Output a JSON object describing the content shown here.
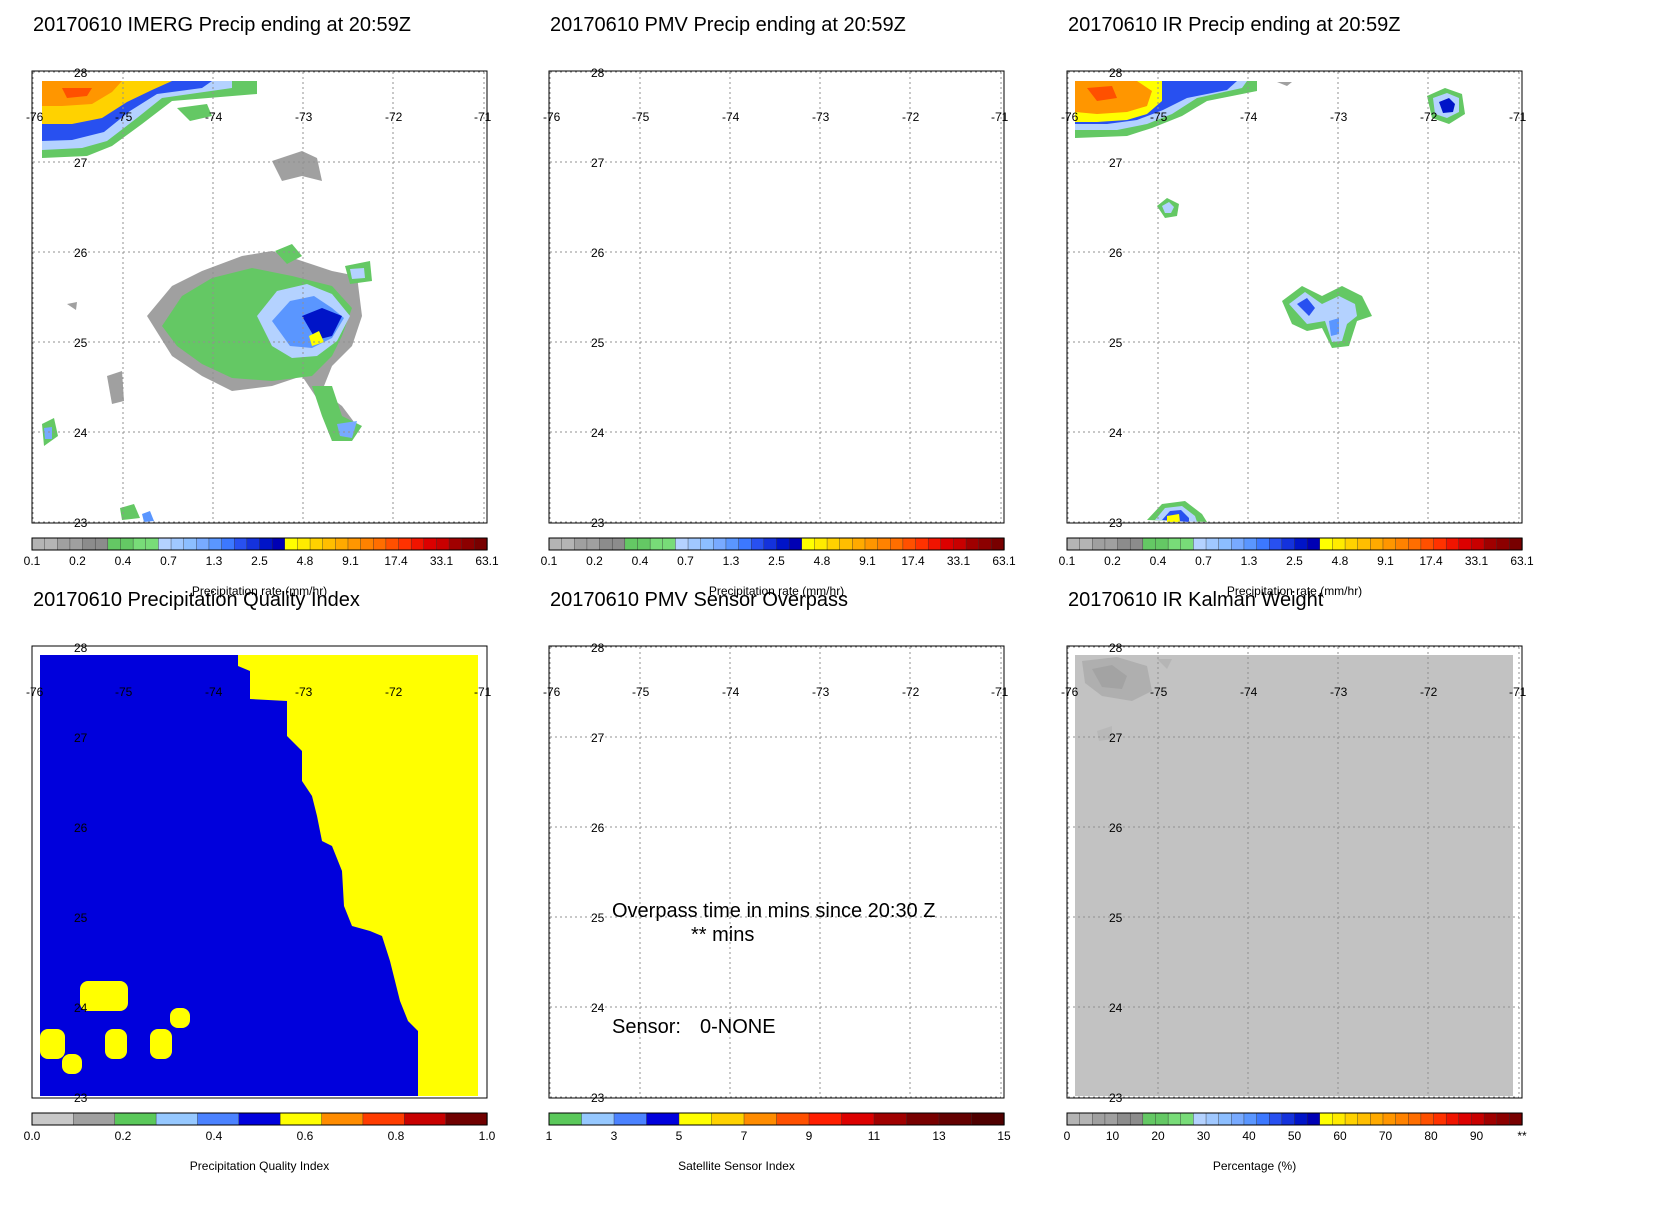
{
  "geo": {
    "lon_ticks": [
      "-76",
      "-75",
      "-74",
      "-73",
      "-72",
      "-71"
    ],
    "lat_ticks": [
      "28",
      "27",
      "26",
      "25",
      "24",
      "23"
    ],
    "lon_range": [
      -76,
      -71
    ],
    "lat_range": [
      23,
      28
    ]
  },
  "panels": [
    {
      "title": "20170610 IMERG Precip ending at 20:59Z",
      "colorbar": {
        "labels": [
          "0.1",
          "0.2",
          "0.4",
          "0.7",
          "1.3",
          "2.5",
          "4.8",
          "9.1",
          "17.4",
          "33.1",
          "63.1"
        ],
        "caption": "Precipitation rate (mm/hr)",
        "colors": [
          "#b4b4b4",
          "#b4b4b4",
          "#a0a0a0",
          "#a0a0a0",
          "#8c8c8c",
          "#8c8c8c",
          "#64c864",
          "#64c864",
          "#78dc78",
          "#78dc78",
          "#b4d2ff",
          "#a0c8ff",
          "#8cbeff",
          "#78aaff",
          "#5a96ff",
          "#3c78ff",
          "#2850f0",
          "#1432dc",
          "#0014c8",
          "#0000b4",
          "#ffff00",
          "#ffeb00",
          "#ffd200",
          "#ffbe00",
          "#ffaa00",
          "#ff9600",
          "#ff8200",
          "#ff6e00",
          "#ff5000",
          "#ff3200",
          "#f01400",
          "#dc0000",
          "#c80000",
          "#a00000",
          "#8c0000",
          "#780000"
        ]
      }
    },
    {
      "title": "20170610 PMV Precip ending at 20:59Z",
      "colorbar": {
        "labels": [
          "0.1",
          "0.2",
          "0.4",
          "0.7",
          "1.3",
          "2.5",
          "4.8",
          "9.1",
          "17.4",
          "33.1",
          "63.1"
        ],
        "caption": "Precipitation rate (mm/hr)",
        "colors": [
          "#b4b4b4",
          "#b4b4b4",
          "#a0a0a0",
          "#a0a0a0",
          "#8c8c8c",
          "#8c8c8c",
          "#64c864",
          "#64c864",
          "#78dc78",
          "#78dc78",
          "#b4d2ff",
          "#a0c8ff",
          "#8cbeff",
          "#78aaff",
          "#5a96ff",
          "#3c78ff",
          "#2850f0",
          "#1432dc",
          "#0014c8",
          "#0000b4",
          "#ffff00",
          "#ffeb00",
          "#ffd200",
          "#ffbe00",
          "#ffaa00",
          "#ff9600",
          "#ff8200",
          "#ff6e00",
          "#ff5000",
          "#ff3200",
          "#f01400",
          "#dc0000",
          "#c80000",
          "#a00000",
          "#8c0000",
          "#780000"
        ]
      }
    },
    {
      "title": "20170610 IR Precip ending at 20:59Z",
      "colorbar": {
        "labels": [
          "0.1",
          "0.2",
          "0.4",
          "0.7",
          "1.3",
          "2.5",
          "4.8",
          "9.1",
          "17.4",
          "33.1",
          "63.1"
        ],
        "caption": "Precipitation rate (mm/hr)",
        "colors": [
          "#b4b4b4",
          "#b4b4b4",
          "#a0a0a0",
          "#a0a0a0",
          "#8c8c8c",
          "#8c8c8c",
          "#64c864",
          "#64c864",
          "#78dc78",
          "#78dc78",
          "#b4d2ff",
          "#a0c8ff",
          "#8cbeff",
          "#78aaff",
          "#5a96ff",
          "#3c78ff",
          "#2850f0",
          "#1432dc",
          "#0014c8",
          "#0000b4",
          "#ffff00",
          "#ffeb00",
          "#ffd200",
          "#ffbe00",
          "#ffaa00",
          "#ff9600",
          "#ff8200",
          "#ff6e00",
          "#ff5000",
          "#ff3200",
          "#f01400",
          "#dc0000",
          "#c80000",
          "#a00000",
          "#8c0000",
          "#780000"
        ]
      }
    },
    {
      "title": "20170610 Precipitation Quality Index",
      "colorbar": {
        "labels": [
          "0.0",
          "0.2",
          "0.4",
          "0.6",
          "0.8",
          "1.0"
        ],
        "caption": "Precipitation Quality Index",
        "colors": [
          "#c8c8c8",
          "#a0a0a0",
          "#5ac85a",
          "#96c8ff",
          "#4b82ff",
          "#0000dc",
          "#ffff00",
          "#ff8c00",
          "#ff3c00",
          "#c80000",
          "#700000"
        ]
      }
    },
    {
      "title": "20170610 PMV Sensor Overpass",
      "colorbar": {
        "labels": [
          "1",
          "3",
          "5",
          "7",
          "9",
          "11",
          "13",
          "15"
        ],
        "caption": "Satellite Sensor Index",
        "colors": [
          "#5ac85a",
          "#96c8ff",
          "#4b82ff",
          "#0000dc",
          "#ffff00",
          "#ffd200",
          "#ff8c00",
          "#ff5000",
          "#ff1e00",
          "#dc0000",
          "#a00000",
          "#780000",
          "#640000",
          "#500000"
        ]
      },
      "overpass_line1": "Overpass time in mins since 20:30 Z",
      "overpass_line2": "** mins",
      "sensor_label": "Sensor:",
      "sensor_value": "0-NONE"
    },
    {
      "title": "20170610 IR Kalman Weight",
      "colorbar": {
        "labels": [
          "0",
          "10",
          "20",
          "30",
          "40",
          "50",
          "60",
          "70",
          "80",
          "90",
          "**"
        ],
        "caption": "Percentage (%)",
        "colors": [
          "#b4b4b4",
          "#b4b4b4",
          "#a0a0a0",
          "#a0a0a0",
          "#8c8c8c",
          "#8c8c8c",
          "#64c864",
          "#64c864",
          "#78dc78",
          "#78dc78",
          "#b4d2ff",
          "#a0c8ff",
          "#8cbeff",
          "#78aaff",
          "#5a96ff",
          "#3c78ff",
          "#2850f0",
          "#1432dc",
          "#0014c8",
          "#0000b4",
          "#ffff00",
          "#ffeb00",
          "#ffd200",
          "#ffbe00",
          "#ffaa00",
          "#ff9600",
          "#ff8200",
          "#ff6e00",
          "#ff5000",
          "#ff3200",
          "#f01400",
          "#dc0000",
          "#c80000",
          "#a00000",
          "#8c0000",
          "#780000"
        ]
      }
    }
  ],
  "chart_data": [
    {
      "type": "heatmap",
      "title": "20170610 IMERG Precip ending at 20:59Z",
      "xlim": [
        -76,
        -71
      ],
      "ylim": [
        23,
        28
      ],
      "xticks": [
        -76,
        -75,
        -74,
        -73,
        -72,
        -71
      ],
      "yticks": [
        28,
        27,
        26,
        25,
        24,
        23
      ],
      "colorbar_ticks": [
        0.1,
        0.2,
        0.4,
        0.7,
        1.3,
        2.5,
        4.8,
        9.1,
        17.4,
        33.1,
        63.1
      ],
      "colorbar_label": "Precipitation rate (mm/hr)",
      "grid": true,
      "features": [
        {
          "region": "northwest corner near 27.6N 75.5W",
          "peak_mm_hr": 9.1
        },
        {
          "region": "central cluster near 25.3N 73.4W",
          "peak_mm_hr": 4.8
        },
        {
          "region": "southwest edge near 24N 75.9W",
          "peak_mm_hr": 0.7
        }
      ]
    },
    {
      "type": "heatmap",
      "title": "20170610 PMV Precip ending at 20:59Z",
      "xlim": [
        -76,
        -71
      ],
      "ylim": [
        23,
        28
      ],
      "colorbar_ticks": [
        0.1,
        0.2,
        0.4,
        0.7,
        1.3,
        2.5,
        4.8,
        9.1,
        17.4,
        33.1,
        63.1
      ],
      "colorbar_label": "Precipitation rate (mm/hr)",
      "grid": true,
      "features": []
    },
    {
      "type": "heatmap",
      "title": "20170610 IR Precip ending at 20:59Z",
      "xlim": [
        -76,
        -71
      ],
      "ylim": [
        23,
        28
      ],
      "colorbar_ticks": [
        0.1,
        0.2,
        0.4,
        0.7,
        1.3,
        2.5,
        4.8,
        9.1,
        17.4,
        33.1,
        63.1
      ],
      "colorbar_label": "Precipitation rate (mm/hr)",
      "grid": true,
      "features": [
        {
          "region": "northwest corner near 27.6N 75.5W",
          "peak_mm_hr": 17.4
        },
        {
          "region": "near 27.6N 71.7W",
          "peak_mm_hr": 2.5
        },
        {
          "region": "near 26.4N 74.9W",
          "peak_mm_hr": 0.4
        },
        {
          "region": "near 25.4N 72.6W",
          "peak_mm_hr": 2.5
        },
        {
          "region": "near 23.1N 75.1W",
          "peak_mm_hr": 1.3
        }
      ]
    },
    {
      "type": "heatmap",
      "title": "20170610 Precipitation Quality Index",
      "xlim": [
        -76,
        -71
      ],
      "ylim": [
        23,
        28
      ],
      "colorbar_ticks": [
        0.0,
        0.2,
        0.4,
        0.6,
        0.8,
        1.0
      ],
      "colorbar_label": "Precipitation Quality Index",
      "grid": false,
      "features": [
        {
          "region": "west of diagonal boundary",
          "value": 0.5
        },
        {
          "region": "east of diagonal boundary and small patches in SW",
          "value": 0.65
        }
      ]
    },
    {
      "type": "heatmap",
      "title": "20170610 PMV Sensor Overpass",
      "xlim": [
        -76,
        -71
      ],
      "ylim": [
        23,
        28
      ],
      "colorbar_ticks": [
        1,
        3,
        5,
        7,
        9,
        11,
        13,
        15
      ],
      "colorbar_label": "Satellite Sensor Index",
      "grid": true,
      "features": []
    },
    {
      "type": "heatmap",
      "title": "20170610 IR Kalman Weight",
      "xlim": [
        -76,
        -71
      ],
      "ylim": [
        23,
        28
      ],
      "colorbar_ticks": [
        0,
        10,
        20,
        30,
        40,
        50,
        60,
        70,
        80,
        90
      ],
      "colorbar_label": "Percentage (%)",
      "grid": true,
      "features": [
        {
          "region": "entire domain",
          "value_pct": 5
        },
        {
          "region": "northwest corner",
          "value_pct": 10
        }
      ]
    }
  ]
}
